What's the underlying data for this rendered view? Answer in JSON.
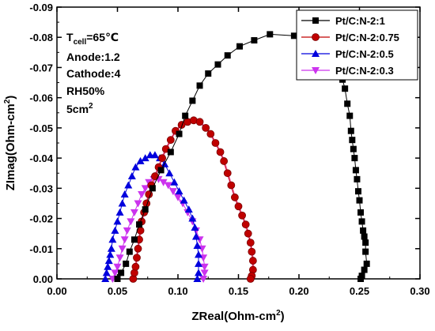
{
  "chart_data": {
    "type": "scatter",
    "xlabel": "ZReal(Ohm-cm²)",
    "ylabel": "ZImag(Ohm-cm²)",
    "xlim": [
      0.0,
      0.3
    ],
    "ylim": [
      0.0,
      -0.09
    ],
    "xticks": [
      "0.00",
      "0.05",
      "0.10",
      "0.15",
      "0.20",
      "0.25",
      "0.30"
    ],
    "yticks": [
      "0.00",
      "-0.01",
      "-0.02",
      "-0.03",
      "-0.04",
      "-0.05",
      "-0.06",
      "-0.07",
      "-0.08",
      "-0.09"
    ],
    "legend_position": "top-right",
    "annotations": {
      "tcell": "Tcell=65℃",
      "anode": "Anode:1.2",
      "cathode": "Cathode:4",
      "rh": "RH50%",
      "area": "5cm2"
    },
    "series": [
      {
        "name": "Pt/C:N-2:1",
        "color": "#000000",
        "marker": "square",
        "points": [
          [
            0.05,
            0.0
          ],
          [
            0.053,
            -0.002
          ],
          [
            0.057,
            -0.005
          ],
          [
            0.06,
            -0.009
          ],
          [
            0.064,
            -0.013
          ],
          [
            0.068,
            -0.018
          ],
          [
            0.073,
            -0.023
          ],
          [
            0.079,
            -0.03
          ],
          [
            0.086,
            -0.036
          ],
          [
            0.094,
            -0.042
          ],
          [
            0.101,
            -0.048
          ],
          [
            0.106,
            -0.054
          ],
          [
            0.112,
            -0.059
          ],
          [
            0.118,
            -0.064
          ],
          [
            0.125,
            -0.068
          ],
          [
            0.133,
            -0.071
          ],
          [
            0.141,
            -0.074
          ],
          [
            0.151,
            -0.077
          ],
          [
            0.163,
            -0.079
          ],
          [
            0.176,
            -0.081
          ],
          [
            0.196,
            -0.0805
          ],
          [
            0.211,
            -0.08
          ],
          [
            0.22,
            -0.079
          ],
          [
            0.226,
            -0.077
          ],
          [
            0.23,
            -0.073
          ],
          [
            0.233,
            -0.07
          ],
          [
            0.236,
            -0.066
          ],
          [
            0.238,
            -0.063
          ],
          [
            0.24,
            -0.058
          ],
          [
            0.242,
            -0.054
          ],
          [
            0.243,
            -0.049
          ],
          [
            0.244,
            -0.046
          ],
          [
            0.245,
            -0.043
          ],
          [
            0.246,
            -0.04
          ],
          [
            0.247,
            -0.036
          ],
          [
            0.248,
            -0.033
          ],
          [
            0.249,
            -0.029
          ],
          [
            0.25,
            -0.026
          ],
          [
            0.251,
            -0.022
          ],
          [
            0.252,
            -0.019
          ],
          [
            0.253,
            -0.016
          ],
          [
            0.254,
            -0.014
          ],
          [
            0.255,
            -0.012
          ],
          [
            0.255,
            -0.009
          ],
          [
            0.256,
            -0.005
          ],
          [
            0.254,
            -0.003
          ],
          [
            0.252,
            -0.001
          ],
          [
            0.251,
            0.0
          ]
        ]
      },
      {
        "name": "Pt/C:N-2:0.75",
        "color": "#c00000",
        "marker": "circle",
        "points": [
          [
            0.063,
            0.0
          ],
          [
            0.064,
            -0.002
          ],
          [
            0.065,
            -0.004
          ],
          [
            0.066,
            -0.007
          ],
          [
            0.067,
            -0.01
          ],
          [
            0.068,
            -0.013
          ],
          [
            0.069,
            -0.016
          ],
          [
            0.07,
            -0.019
          ],
          [
            0.072,
            -0.022
          ],
          [
            0.074,
            -0.025
          ],
          [
            0.076,
            -0.028
          ],
          [
            0.078,
            -0.031
          ],
          [
            0.081,
            -0.034
          ],
          [
            0.084,
            -0.037
          ],
          [
            0.087,
            -0.04
          ],
          [
            0.09,
            -0.043
          ],
          [
            0.094,
            -0.046
          ],
          [
            0.098,
            -0.049
          ],
          [
            0.103,
            -0.051
          ],
          [
            0.108,
            -0.052
          ],
          [
            0.113,
            -0.0525
          ],
          [
            0.118,
            -0.052
          ],
          [
            0.123,
            -0.05
          ],
          [
            0.127,
            -0.048
          ],
          [
            0.131,
            -0.045
          ],
          [
            0.135,
            -0.042
          ],
          [
            0.138,
            -0.039
          ],
          [
            0.141,
            -0.035
          ],
          [
            0.144,
            -0.031
          ],
          [
            0.147,
            -0.027
          ],
          [
            0.15,
            -0.024
          ],
          [
            0.153,
            -0.021
          ],
          [
            0.156,
            -0.018
          ],
          [
            0.158,
            -0.015
          ],
          [
            0.16,
            -0.012
          ],
          [
            0.161,
            -0.009
          ],
          [
            0.162,
            -0.006
          ],
          [
            0.162,
            -0.003
          ],
          [
            0.161,
            -0.001
          ],
          [
            0.16,
            0.0
          ]
        ]
      },
      {
        "name": "Pt/C:N-2:0.5",
        "color": "#0000dd",
        "marker": "triangle-up",
        "points": [
          [
            0.04,
            0.0
          ],
          [
            0.041,
            -0.002
          ],
          [
            0.042,
            -0.004
          ],
          [
            0.043,
            -0.006
          ],
          [
            0.044,
            -0.008
          ],
          [
            0.045,
            -0.01
          ],
          [
            0.046,
            -0.013
          ],
          [
            0.048,
            -0.016
          ],
          [
            0.05,
            -0.019
          ],
          [
            0.052,
            -0.022
          ],
          [
            0.054,
            -0.025
          ],
          [
            0.056,
            -0.028
          ],
          [
            0.059,
            -0.031
          ],
          [
            0.062,
            -0.034
          ],
          [
            0.065,
            -0.037
          ],
          [
            0.069,
            -0.039
          ],
          [
            0.073,
            -0.04
          ],
          [
            0.077,
            -0.041
          ],
          [
            0.081,
            -0.041
          ],
          [
            0.085,
            -0.04
          ],
          [
            0.089,
            -0.038
          ],
          [
            0.093,
            -0.035
          ],
          [
            0.097,
            -0.032
          ],
          [
            0.101,
            -0.029
          ],
          [
            0.105,
            -0.026
          ],
          [
            0.109,
            -0.023
          ],
          [
            0.112,
            -0.02
          ],
          [
            0.114,
            -0.017
          ],
          [
            0.115,
            -0.014
          ],
          [
            0.116,
            -0.011
          ],
          [
            0.117,
            -0.008
          ],
          [
            0.117,
            -0.005
          ],
          [
            0.117,
            -0.002
          ],
          [
            0.116,
            0.0
          ]
        ]
      },
      {
        "name": "Pt/C:N-2:0.3",
        "color": "#cc33ee",
        "marker": "triangle-down",
        "points": [
          [
            0.046,
            0.0
          ],
          [
            0.048,
            -0.002
          ],
          [
            0.05,
            -0.004
          ],
          [
            0.052,
            -0.007
          ],
          [
            0.054,
            -0.01
          ],
          [
            0.056,
            -0.013
          ],
          [
            0.058,
            -0.016
          ],
          [
            0.061,
            -0.019
          ],
          [
            0.064,
            -0.022
          ],
          [
            0.067,
            -0.025
          ],
          [
            0.07,
            -0.028
          ],
          [
            0.073,
            -0.03
          ],
          [
            0.076,
            -0.032
          ],
          [
            0.08,
            -0.033
          ],
          [
            0.084,
            -0.033
          ],
          [
            0.088,
            -0.032
          ],
          [
            0.092,
            -0.031
          ],
          [
            0.096,
            -0.029
          ],
          [
            0.1,
            -0.027
          ],
          [
            0.104,
            -0.025
          ],
          [
            0.108,
            -0.022
          ],
          [
            0.112,
            -0.019
          ],
          [
            0.115,
            -0.016
          ],
          [
            0.118,
            -0.013
          ],
          [
            0.12,
            -0.01
          ],
          [
            0.121,
            -0.007
          ],
          [
            0.122,
            -0.004
          ],
          [
            0.122,
            -0.002
          ],
          [
            0.121,
            0.0
          ]
        ]
      }
    ]
  }
}
